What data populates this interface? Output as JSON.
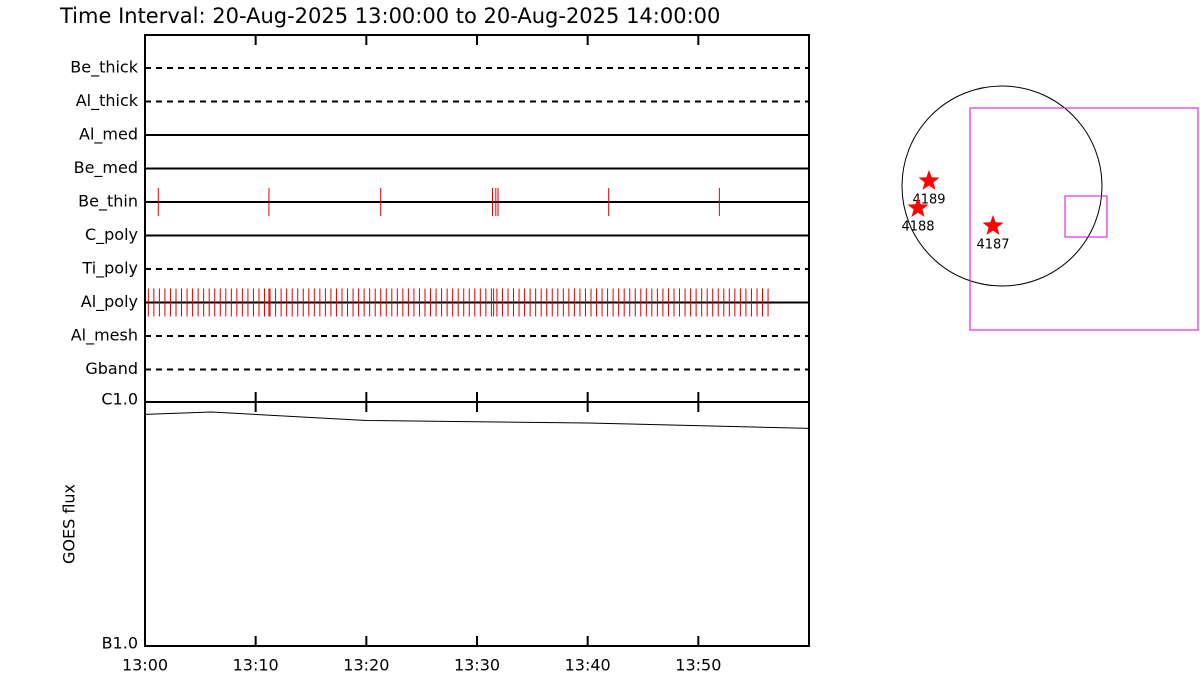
{
  "chart_data": [
    {
      "type": "timeline",
      "title": "Time Interval: 20-Aug-2025 13:00:00 to 20-Aug-2025 14:00:00",
      "categories": [
        "Be_thick",
        "Al_thick",
        "Al_med",
        "Be_med",
        "Be_thin",
        "C_poly",
        "Ti_poly",
        "Al_poly",
        "Al_mesh",
        "Gband"
      ],
      "line_styles": [
        "dashed",
        "dashed",
        "solid",
        "solid",
        "solid",
        "solid",
        "dashed",
        "solid",
        "dashed",
        "dashed"
      ],
      "color": "#e00000",
      "xlim": [
        0,
        60
      ],
      "events": [
        [],
        [],
        [],
        [],
        [
          1.2,
          11.2,
          21.3,
          31.4,
          31.7,
          31.9,
          41.9,
          51.9
        ],
        [],
        [],
        [
          0.3,
          0.8,
          1.3,
          1.8,
          2.3,
          2.8,
          3.3,
          3.8,
          4.3,
          4.8,
          5.3,
          5.8,
          6.3,
          6.8,
          7.3,
          7.8,
          8.3,
          8.8,
          9.3,
          9.8,
          10.3,
          10.8,
          11.2,
          11.3,
          11.8,
          12.3,
          12.8,
          13.3,
          13.8,
          14.3,
          14.8,
          15.3,
          15.8,
          16.3,
          16.8,
          17.3,
          17.8,
          18.3,
          18.8,
          19.3,
          19.8,
          20.3,
          20.8,
          21.3,
          21.8,
          22.3,
          22.8,
          23.3,
          23.8,
          24.3,
          24.8,
          25.3,
          25.8,
          26.3,
          26.8,
          27.3,
          27.8,
          28.3,
          28.8,
          29.3,
          29.8,
          30.3,
          30.8,
          31.3,
          31.5,
          31.8,
          32.3,
          32.8,
          33.3,
          33.8,
          34.3,
          34.8,
          35.3,
          35.8,
          36.3,
          36.8,
          37.3,
          37.8,
          38.3,
          38.8,
          39.3,
          39.8,
          40.3,
          40.8,
          41.3,
          41.8,
          42.3,
          42.8,
          43.3,
          43.8,
          44.3,
          44.8,
          45.3,
          45.8,
          46.3,
          46.8,
          47.3,
          47.8,
          48.3,
          48.8,
          49.3,
          49.8,
          50.3,
          50.8,
          51.3,
          51.8,
          52.3,
          52.8,
          53.3,
          53.8,
          54.3,
          54.8,
          55.3,
          55.8,
          56.3
        ],
        [],
        []
      ]
    },
    {
      "type": "line",
      "ylabel": "GOES flux",
      "log_y": true,
      "xlim": [
        0,
        60
      ],
      "xticks": [
        {
          "value": 0,
          "label": "13:00"
        },
        {
          "value": 10,
          "label": "13:10"
        },
        {
          "value": 20,
          "label": "13:20"
        },
        {
          "value": 30,
          "label": "13:30"
        },
        {
          "value": 40,
          "label": "13:40"
        },
        {
          "value": 50,
          "label": "13:50"
        }
      ],
      "ylim": [
        1e-07,
        1e-06
      ],
      "yticks": [
        {
          "value": 1e-06,
          "label": "C1.0"
        },
        {
          "value": 1e-07,
          "label": "B1.0"
        }
      ],
      "x": [
        0,
        6,
        20,
        40,
        60
      ],
      "values": [
        8.9e-07,
        9.1e-07,
        8.4e-07,
        8.2e-07,
        7.8e-07
      ],
      "color": "#000000"
    },
    {
      "type": "map",
      "labels": [
        "4189",
        "4188",
        "4187"
      ],
      "color": "#ff0000",
      "box_color": "#e000e0"
    }
  ]
}
